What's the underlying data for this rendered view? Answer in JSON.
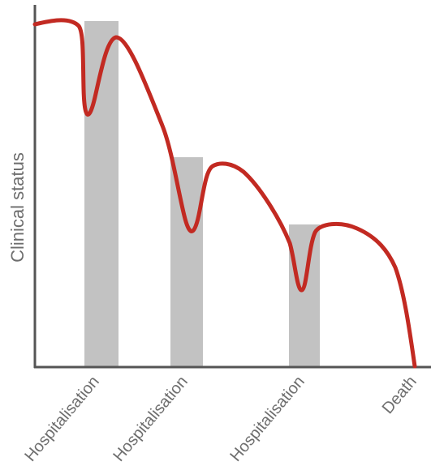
{
  "diagram": {
    "y_axis_label": "Clinical status",
    "x_labels": [
      "Hospitalisation",
      "Hospitalisation",
      "Hospitalisation",
      "Death"
    ],
    "colors": {
      "curve": "#c22a22",
      "bars": "#c2c2c2",
      "axis": "#555555",
      "text": "#6e6e6e"
    }
  }
}
